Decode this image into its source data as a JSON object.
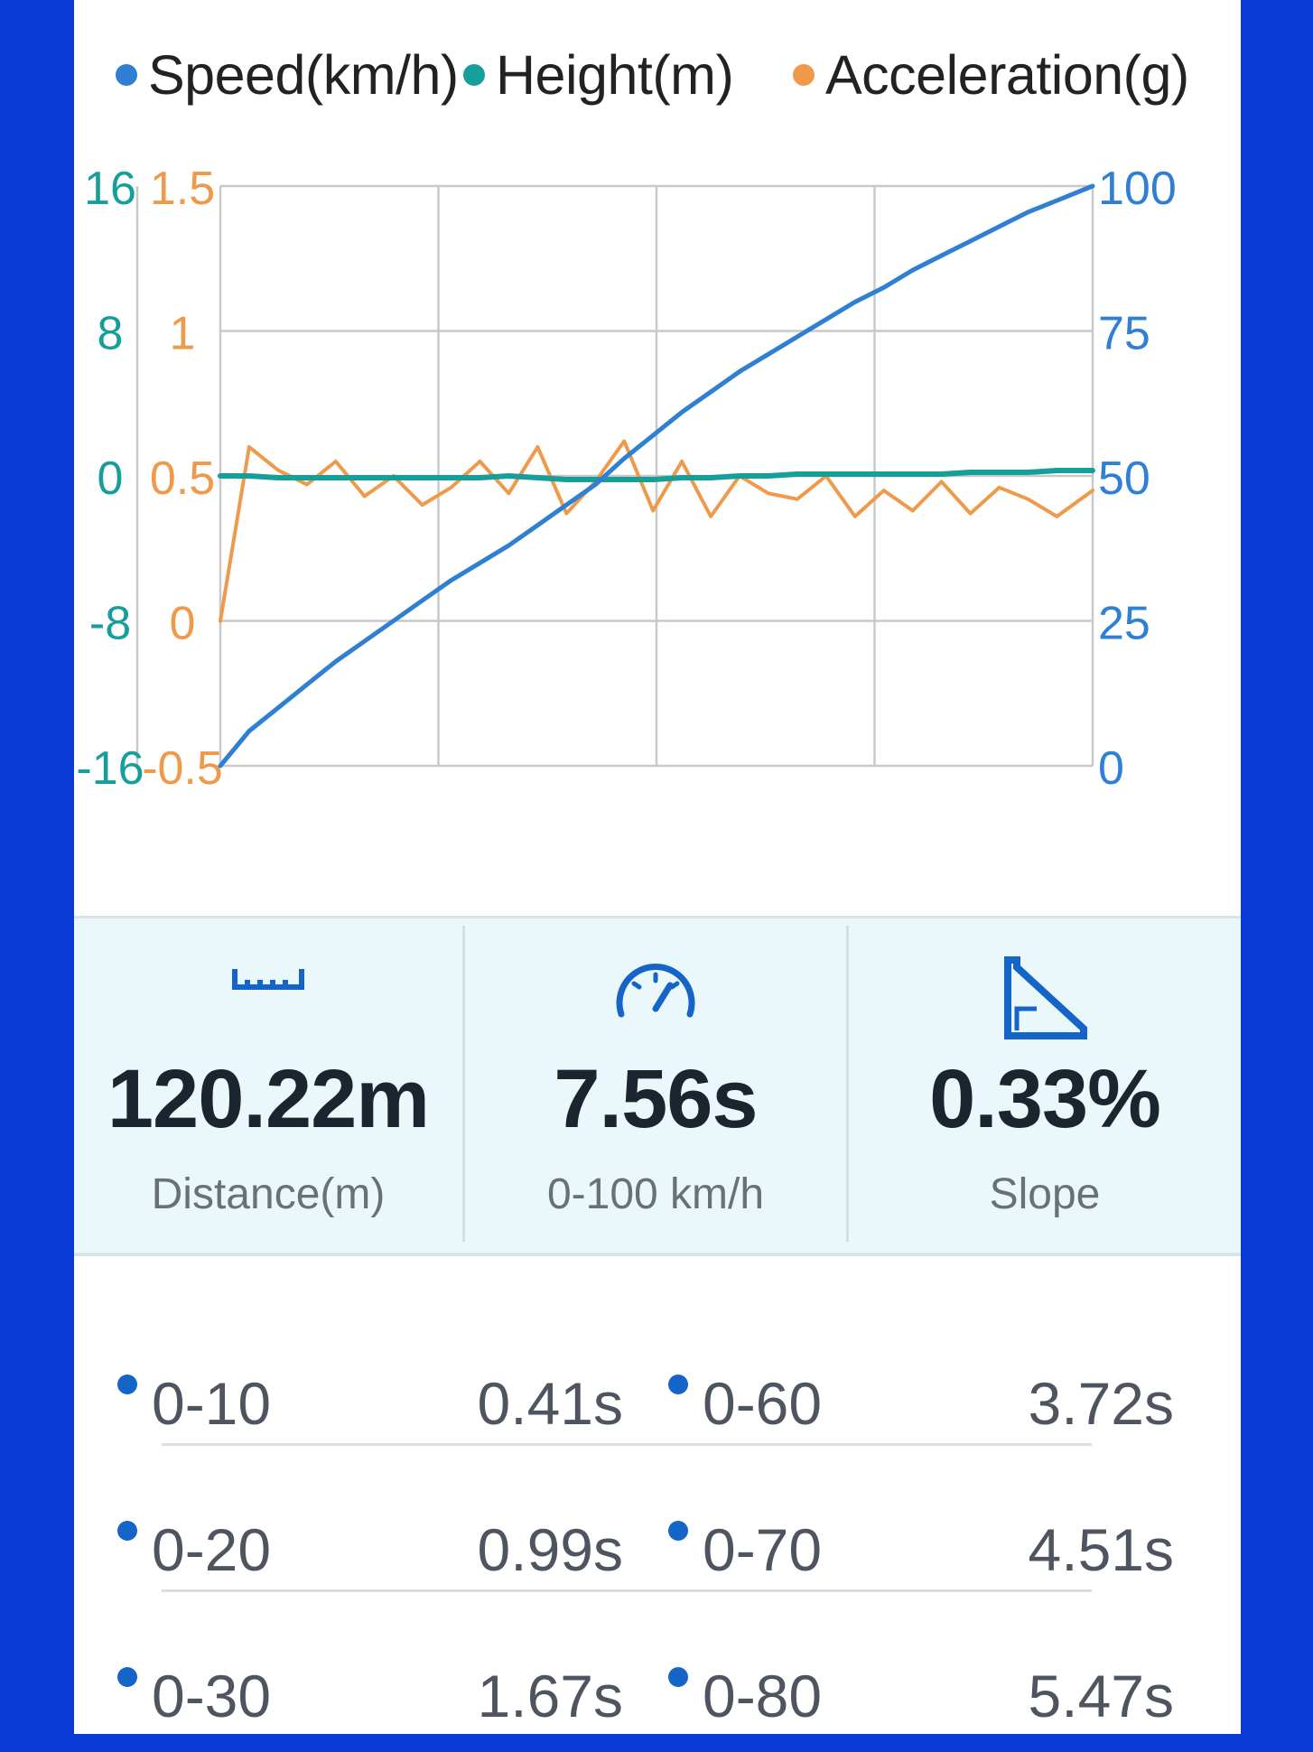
{
  "legend": {
    "speed": "Speed(km/h)",
    "height": "Height(m)",
    "acceleration": "Acceleration(g)"
  },
  "colors": {
    "speed": "#2f7fd3",
    "height": "#169e9a",
    "acceleration": "#ef9a4a",
    "accent": "#1565c9",
    "frame": "#0a3ad6"
  },
  "chart_data": {
    "type": "line",
    "title": "",
    "xlabel": "",
    "x_ticks_shown": false,
    "grid": true,
    "legend_position": "top",
    "axes": {
      "height_left": {
        "ticks": [
          "16",
          "8",
          "0",
          "-8",
          "-16"
        ],
        "ylim": [
          -16,
          16
        ]
      },
      "acceleration_left": {
        "ticks": [
          "1.5",
          "1",
          "0.5",
          "0",
          "-0.5"
        ],
        "ylim": [
          -0.5,
          1.5
        ]
      },
      "speed_right": {
        "ticks": [
          "100",
          "75",
          "50",
          "25",
          "0"
        ],
        "ylim": [
          0,
          100
        ]
      }
    },
    "x": [
      0,
      0.25,
      0.5,
      0.75,
      1.0,
      1.25,
      1.5,
      1.75,
      2.0,
      2.25,
      2.5,
      2.75,
      3.0,
      3.25,
      3.5,
      3.75,
      4.0,
      4.25,
      4.5,
      4.75,
      5.0,
      5.25,
      5.5,
      5.75,
      6.0,
      6.25,
      6.5,
      6.75,
      7.0,
      7.25,
      7.56
    ],
    "series": [
      {
        "name": "Speed(km/h)",
        "axis": "speed_right",
        "values": [
          0,
          6,
          10,
          14,
          18,
          21.5,
          25,
          28.5,
          32,
          35,
          38,
          41.5,
          45,
          48.5,
          53,
          57,
          61,
          64.5,
          68,
          71,
          74,
          77,
          80,
          82.5,
          85.5,
          88,
          90.5,
          93,
          95.5,
          97.5,
          100
        ]
      },
      {
        "name": "Height(m)",
        "axis": "height_left",
        "values": [
          0,
          0,
          -0.1,
          -0.1,
          -0.1,
          -0.1,
          -0.1,
          -0.1,
          -0.1,
          -0.1,
          0,
          -0.1,
          -0.2,
          -0.2,
          -0.2,
          -0.2,
          -0.1,
          -0.1,
          0,
          0,
          0.1,
          0.1,
          0.1,
          0.1,
          0.1,
          0.1,
          0.2,
          0.2,
          0.2,
          0.3,
          0.3
        ]
      },
      {
        "name": "Acceleration(g)",
        "axis": "acceleration_left",
        "values": [
          0.0,
          0.6,
          0.52,
          0.47,
          0.55,
          0.43,
          0.5,
          0.4,
          0.46,
          0.55,
          0.44,
          0.6,
          0.37,
          0.48,
          0.62,
          0.38,
          0.55,
          0.36,
          0.5,
          0.44,
          0.42,
          0.5,
          0.36,
          0.45,
          0.38,
          0.48,
          0.37,
          0.46,
          0.42,
          0.36,
          0.45
        ]
      }
    ]
  },
  "stats": [
    {
      "icon": "ruler-icon",
      "value": "120.22m",
      "label": "Distance(m)"
    },
    {
      "icon": "speedometer-icon",
      "value": "7.56s",
      "label": "0-100 km/h"
    },
    {
      "icon": "slope-icon",
      "value": "0.33%",
      "label": "Slope"
    }
  ],
  "splits": [
    {
      "range": "0-10",
      "time": "0.41s"
    },
    {
      "range": "0-60",
      "time": "3.72s"
    },
    {
      "range": "0-20",
      "time": "0.99s"
    },
    {
      "range": "0-70",
      "time": "4.51s"
    },
    {
      "range": "0-30",
      "time": "1.67s"
    },
    {
      "range": "0-80",
      "time": "5.47s"
    }
  ]
}
